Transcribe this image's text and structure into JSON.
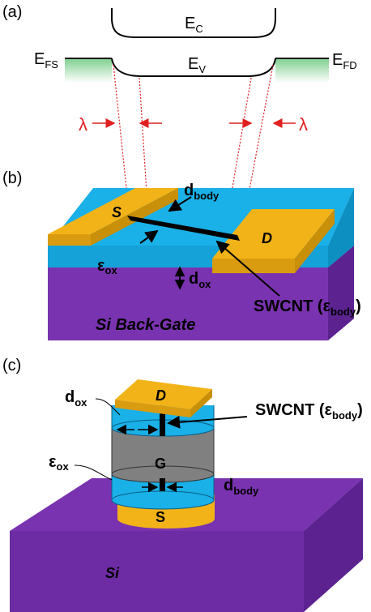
{
  "panels": {
    "a": {
      "tag": "(a)",
      "ec": {
        "main": "E",
        "sub": "C"
      },
      "ev": {
        "main": "E",
        "sub": "V"
      },
      "efs": {
        "main": "E",
        "sub": "FS"
      },
      "efd": {
        "main": "E",
        "sub": "FD"
      },
      "lambda_left": "λ",
      "lambda_right": "λ"
    },
    "b": {
      "tag": "(b)",
      "source": "S",
      "drain": "D",
      "dbody": {
        "main": "d",
        "sub": "body"
      },
      "eps_ox": {
        "main": "ε",
        "sub": "ox"
      },
      "dox": {
        "main": "d",
        "sub": "ox"
      },
      "substrate": "Si Back-Gate",
      "swcnt": {
        "main": "SWCNT (ε",
        "sub": "body",
        "tail": ")"
      }
    },
    "c": {
      "tag": "(c)",
      "drain": "D",
      "gate": "G",
      "source": "S",
      "substrate": "Si",
      "dox": {
        "main": "d",
        "sub": "ox"
      },
      "eps_ox": {
        "main": "ε",
        "sub": "ox"
      },
      "dbody": {
        "main": "d",
        "sub": "body"
      },
      "swcnt": {
        "main": "SWCNT (ε",
        "sub": "body",
        "tail": ")"
      }
    }
  },
  "colors": {
    "gold": "#f2b318",
    "gold_dark": "#c88f08",
    "oxide": "#1ab0e8",
    "oxide_dark": "#0e8fc2",
    "substrate": "#7a33b0",
    "substrate_dark": "#5b2290",
    "gate": "#808080",
    "arrow_red": "#e02020",
    "fermi_green": "#7fcf8f"
  }
}
